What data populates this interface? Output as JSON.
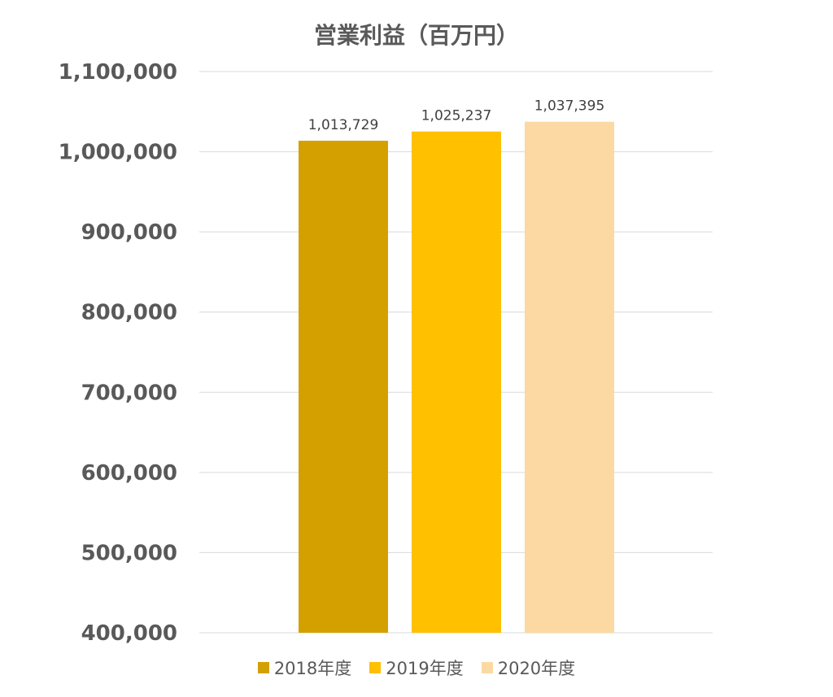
{
  "chart_data": {
    "type": "bar",
    "title": "営業利益（百万円）",
    "categories": [
      "2018年度",
      "2019年度",
      "2020年度"
    ],
    "values": [
      1013729,
      1025237,
      1037395
    ],
    "data_labels": [
      "1,013,729",
      "1,025,237",
      "1,037,395"
    ],
    "colors": [
      "#D4A000",
      "#FFC000",
      "#FCD9A2"
    ],
    "ylim": [
      400000,
      1100000
    ],
    "yticks": [
      400000,
      500000,
      600000,
      700000,
      800000,
      900000,
      1000000,
      1100000
    ],
    "ytick_labels": [
      "400,000",
      "500,000",
      "600,000",
      "700,000",
      "800,000",
      "900,000",
      "1,000,000",
      "1,100,000"
    ],
    "grid": true,
    "gridline_color": "#D9D9D9",
    "legend_position": "bottom"
  }
}
